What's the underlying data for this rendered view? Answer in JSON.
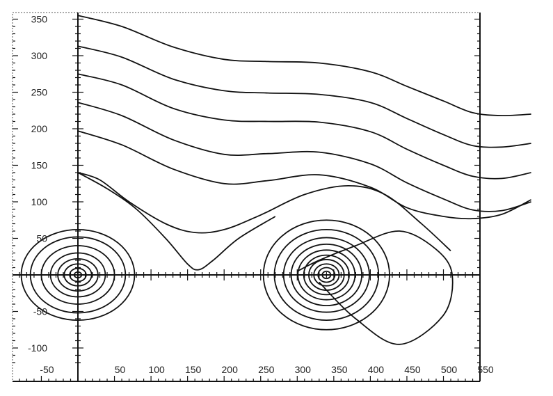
{
  "chart_data": {
    "type": "line",
    "title": "",
    "xlabel": "",
    "ylabel": "",
    "xlim": [
      -92,
      600
    ],
    "ylim": [
      -125,
      357
    ],
    "grid": false,
    "x_ticks": [
      "-50",
      "50",
      "100",
      "150",
      "200",
      "250",
      "300",
      "350",
      "400",
      "450",
      "500",
      "550"
    ],
    "y_ticks": [
      "350",
      "300",
      "250",
      "200",
      "150",
      "100",
      "50",
      "-50",
      "-100"
    ],
    "x_tick_values": [
      -50,
      50,
      100,
      150,
      200,
      250,
      300,
      350,
      400,
      450,
      500,
      550
    ],
    "y_tick_values": [
      350,
      300,
      250,
      200,
      150,
      100,
      50,
      -50,
      -100
    ],
    "streamlines": [
      {
        "x": [
          0,
          60,
          130,
          200,
          260,
          330,
          400,
          450,
          500,
          540,
          580,
          620
        ],
        "y": [
          355,
          340,
          312,
          295,
          292,
          290,
          278,
          258,
          238,
          222,
          218,
          220
        ]
      },
      {
        "x": [
          0,
          60,
          130,
          200,
          260,
          330,
          400,
          450,
          500,
          540,
          580,
          620
        ],
        "y": [
          313,
          298,
          268,
          252,
          249,
          247,
          236,
          214,
          192,
          177,
          175,
          180
        ]
      },
      {
        "x": [
          0,
          60,
          130,
          200,
          260,
          330,
          400,
          450,
          500,
          540,
          580,
          620
        ],
        "y": [
          275,
          260,
          228,
          212,
          210,
          209,
          196,
          172,
          150,
          135,
          132,
          140
        ]
      },
      {
        "x": [
          0,
          60,
          130,
          200,
          260,
          330,
          400,
          450,
          500,
          540,
          580,
          620
        ],
        "y": [
          236,
          218,
          185,
          165,
          166,
          168,
          152,
          126,
          104,
          89,
          88,
          100
        ]
      },
      {
        "x": [
          0,
          60,
          130,
          200,
          260,
          330,
          400,
          450,
          500,
          540,
          580,
          620
        ],
        "y": [
          197,
          178,
          145,
          125,
          129,
          137,
          120,
          92,
          80,
          77,
          83,
          103
        ]
      },
      {
        "x": [
          0,
          30,
          70,
          120,
          160,
          200,
          250,
          310,
          370,
          420,
          470,
          510
        ],
        "y": [
          140,
          130,
          100,
          70,
          58,
          62,
          82,
          110,
          122,
          110,
          70,
          33
        ]
      }
    ],
    "separatrix": {
      "x": [
        0,
        40,
        80,
        120,
        150,
        165,
        185,
        220,
        270
      ],
      "y": [
        140,
        118,
        90,
        50,
        15,
        7,
        20,
        50,
        80
      ]
    },
    "vortex_lower": {
      "x": [
        330,
        380,
        440,
        500,
        512,
        490,
        440,
        380,
        330,
        300
      ],
      "y": [
        -10,
        -60,
        -95,
        -55,
        0,
        35,
        60,
        40,
        20,
        5
      ]
    },
    "vortices": [
      {
        "center": [
          340,
          0
        ],
        "radii": [
          5,
          10,
          15,
          21,
          27,
          34,
          42,
          51,
          62,
          75
        ],
        "x_scale": 1.15
      },
      {
        "center": [
          0,
          0
        ],
        "radii": [
          4,
          9,
          15,
          22,
          30,
          40,
          52,
          62
        ],
        "x_scale": 1.25
      }
    ]
  }
}
